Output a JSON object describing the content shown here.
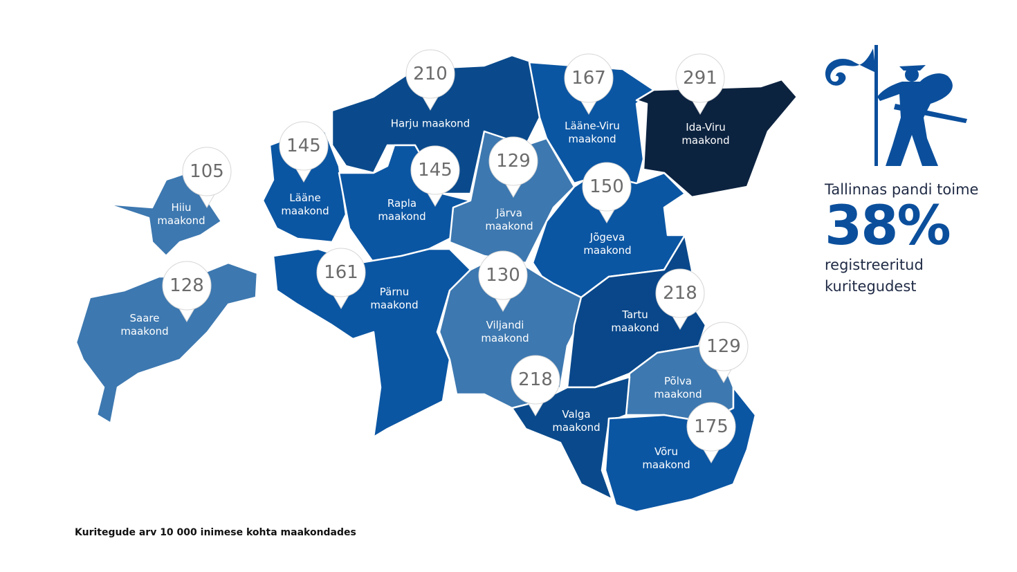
{
  "regions": [
    {
      "name": "Harju maakond",
      "value": 210,
      "color": "#0a4a8c"
    },
    {
      "name": "Lääne-Viru maakond",
      "value": 167,
      "color": "#0b56a3"
    },
    {
      "name": "Ida-Viru maakond",
      "value": 291,
      "color": "#0c2340"
    },
    {
      "name": "Lääne maakond",
      "value": 145,
      "color": "#0b56a3"
    },
    {
      "name": "Rapla maakond",
      "value": 145,
      "color": "#0b56a3"
    },
    {
      "name": "Järva maakond",
      "value": 129,
      "color": "#3d78b0"
    },
    {
      "name": "Jõgeva maakond",
      "value": 150,
      "color": "#0b56a3"
    },
    {
      "name": "Hiiu maakond",
      "value": 105,
      "color": "#3d78b0"
    },
    {
      "name": "Saare maakond",
      "value": 128,
      "color": "#3d78b0"
    },
    {
      "name": "Pärnu maakond",
      "value": 161,
      "color": "#0b56a3"
    },
    {
      "name": "Viljandi maakond",
      "value": 130,
      "color": "#3d78b0"
    },
    {
      "name": "Tartu maakond",
      "value": 218,
      "color": "#09478a"
    },
    {
      "name": "Põlva maakond",
      "value": 129,
      "color": "#3d78b0"
    },
    {
      "name": "Valga maakond",
      "value": 218,
      "color": "#0a4a8c"
    },
    {
      "name": "Võru maakond",
      "value": 175,
      "color": "#0b56a3"
    }
  ],
  "stat": {
    "intro": "Tallinnas pandi toime",
    "value": "38%",
    "outro": "registreeritud kuritegudest"
  },
  "caption": "Kuritegude arv 10 000 inimese kohta maakondades"
}
